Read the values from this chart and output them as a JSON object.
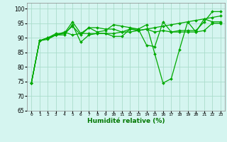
{
  "title": "",
  "xlabel": "Humidité relative (%)",
  "ylabel": "",
  "background_color": "#d5f5f0",
  "grid_color": "#aaddcc",
  "line_color": "#00aa00",
  "marker_color": "#00aa00",
  "xlim": [
    -0.5,
    23.5
  ],
  "ylim": [
    65,
    102
  ],
  "yticks": [
    65,
    70,
    75,
    80,
    85,
    90,
    95,
    100
  ],
  "xticks": [
    0,
    1,
    2,
    3,
    4,
    5,
    6,
    7,
    8,
    9,
    10,
    11,
    12,
    13,
    14,
    15,
    16,
    17,
    18,
    19,
    20,
    21,
    22,
    23
  ],
  "series": [
    [
      74.5,
      89,
      89.5,
      91,
      91,
      94.5,
      88.5,
      91,
      91.5,
      91.5,
      90.5,
      90.5,
      93,
      93,
      94.5,
      84.5,
      74.5,
      76,
      86,
      95.5,
      92,
      96.5,
      95.5,
      95.5
    ],
    [
      74.5,
      89,
      90,
      91,
      92,
      91,
      91.5,
      93.5,
      92,
      92.5,
      94.5,
      94,
      93.5,
      93,
      87.5,
      87,
      95.5,
      92,
      92.5,
      92.5,
      92.5,
      95.5,
      99,
      99
    ],
    [
      74.5,
      89,
      90,
      91.5,
      91.5,
      95.5,
      91.5,
      91.5,
      91.5,
      91.5,
      91.5,
      92,
      92,
      92.5,
      93,
      93.5,
      94,
      94.5,
      95,
      95.5,
      96,
      96.5,
      97,
      97.5
    ],
    [
      74.5,
      89,
      90,
      91,
      91.5,
      94,
      91,
      93.5,
      93.5,
      93,
      93,
      92,
      93,
      92.5,
      93,
      92,
      92.5,
      92,
      92,
      92,
      92,
      92.5,
      95,
      95
    ]
  ]
}
